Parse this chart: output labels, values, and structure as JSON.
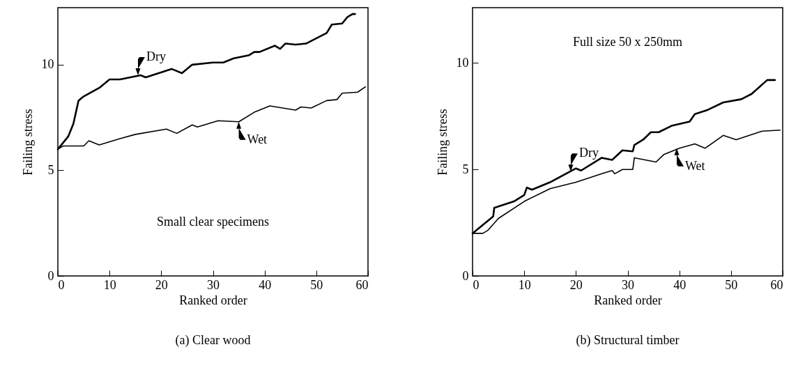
{
  "chart_data": [
    {
      "type": "line",
      "title": "(a)  Clear wood",
      "xlabel": "Ranked order",
      "ylabel": "Failing stress",
      "xlim": [
        0,
        60
      ],
      "xticks": [
        0,
        10,
        20,
        30,
        40,
        50,
        60
      ],
      "ylim": [
        0,
        12.7
      ],
      "yticks": [
        0,
        5,
        10
      ],
      "annotations": [
        {
          "text": "Dry",
          "x": 15.5,
          "y": 9.5
        },
        {
          "text": "Wet",
          "x": 35,
          "y": 7.3
        },
        "Small clear specimens"
      ],
      "series": [
        {
          "color": "#000000",
          "x": [
            0,
            2,
            3,
            4,
            5,
            8,
            10,
            12,
            16,
            17,
            22,
            24,
            26,
            30,
            32,
            34,
            37,
            38,
            39,
            42,
            43,
            44,
            46,
            48,
            52,
            53,
            55,
            56,
            57,
            57.5
          ],
          "values": [
            6,
            6.6,
            7.2,
            8.3,
            8.5,
            8.9,
            9.3,
            9.3,
            9.5,
            9.4,
            9.8,
            9.6,
            10,
            10.1,
            10.1,
            10.3,
            10.45,
            10.6,
            10.6,
            10.9,
            10.75,
            11,
            10.95,
            11,
            11.5,
            11.9,
            11.95,
            12.25,
            12.4,
            12.4
          ]
        },
        {
          "color": "#000000",
          "x": [
            0,
            1,
            5,
            6,
            8,
            12,
            15,
            21,
            23,
            26,
            27,
            31,
            35,
            38,
            41,
            46,
            47,
            49,
            52,
            54,
            55,
            58,
            59.5
          ],
          "values": [
            6,
            6.15,
            6.15,
            6.4,
            6.2,
            6.5,
            6.7,
            6.95,
            6.75,
            7.15,
            7.05,
            7.35,
            7.3,
            7.75,
            8.05,
            7.85,
            8,
            7.95,
            8.3,
            8.35,
            8.65,
            8.7,
            8.95
          ]
        }
      ]
    },
    {
      "type": "line",
      "title": "(b)  Structural timber",
      "xlabel": "Ranked order",
      "ylabel": "Failing stress",
      "xlim": [
        0,
        60
      ],
      "xticks": [
        0,
        10,
        20,
        30,
        40,
        50,
        60
      ],
      "ylim": [
        0,
        12.6
      ],
      "yticks": [
        0,
        5,
        10
      ],
      "annotations": [
        {
          "text": "Dry",
          "x": 19,
          "y": 4.9
        },
        {
          "text": "Wet",
          "x": 39.5,
          "y": 6
        },
        "Full size 50 x 250mm"
      ],
      "series": [
        {
          "color": "#000000",
          "x": [
            0,
            4,
            4.2,
            8,
            10,
            10.5,
            11.5,
            15,
            20,
            21,
            25,
            27,
            29,
            31,
            31.3,
            33,
            34.5,
            36,
            38.5,
            42,
            43,
            45.5,
            48.5,
            52,
            54,
            57,
            58.5
          ],
          "values": [
            2,
            2.8,
            3.2,
            3.5,
            3.8,
            4.15,
            4.05,
            4.4,
            5.05,
            4.95,
            5.55,
            5.45,
            5.9,
            5.85,
            6.15,
            6.4,
            6.75,
            6.75,
            7.05,
            7.25,
            7.6,
            7.8,
            8.15,
            8.3,
            8.55,
            9.2,
            9.2
          ]
        },
        {
          "color": "#000000",
          "x": [
            0,
            2,
            3,
            5,
            10,
            15,
            20,
            25,
            27,
            27.5,
            29,
            31,
            31.3,
            35.5,
            37,
            40,
            43,
            45,
            48.5,
            51,
            56,
            59.5
          ],
          "values": [
            2,
            2,
            2.15,
            2.7,
            3.5,
            4.1,
            4.4,
            4.8,
            4.95,
            4.8,
            5,
            5,
            5.55,
            5.35,
            5.7,
            6,
            6.2,
            6,
            6.6,
            6.4,
            6.8,
            6.85
          ]
        }
      ]
    }
  ]
}
